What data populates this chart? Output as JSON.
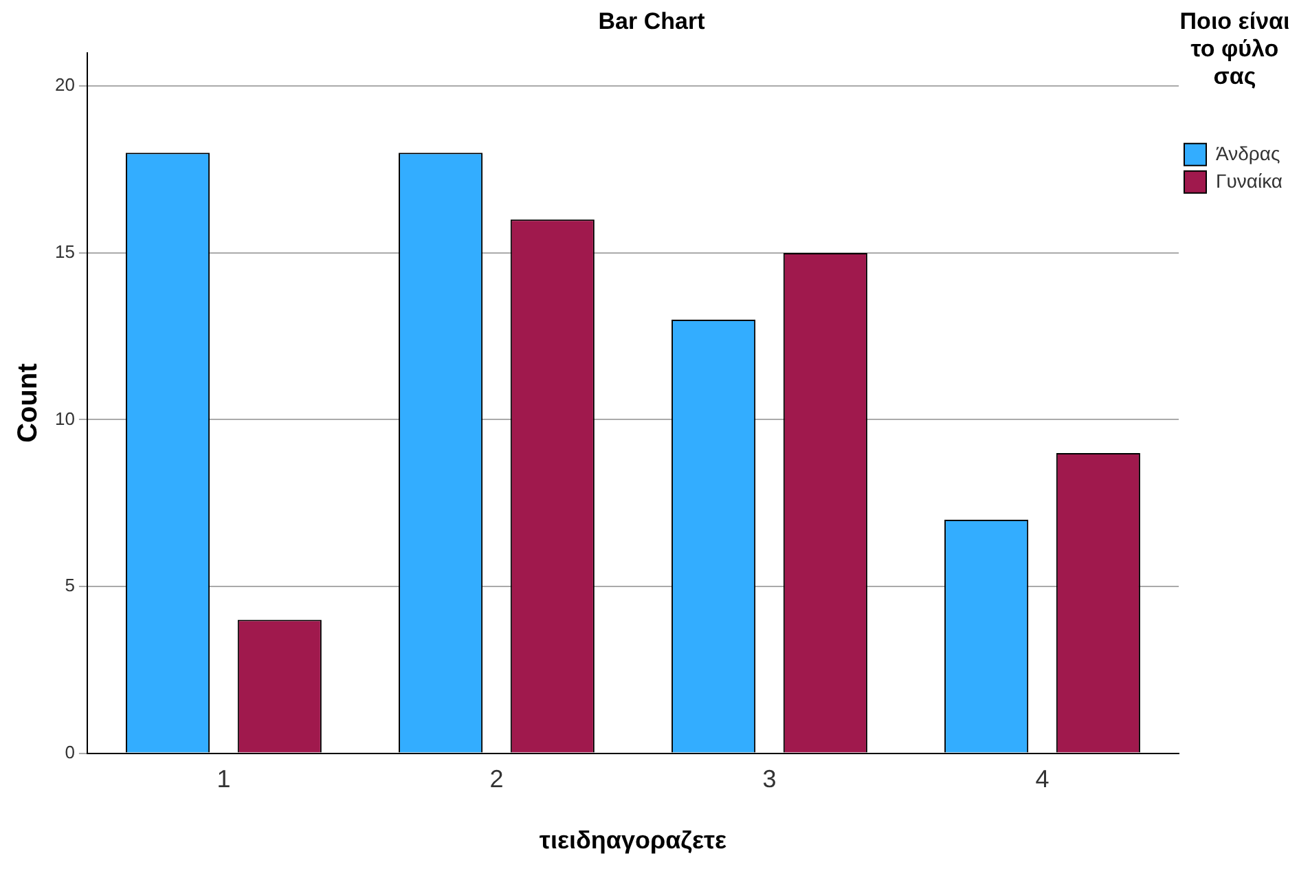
{
  "chart_data": {
    "type": "bar",
    "title": "Bar Chart",
    "xlabel": "τιειδηαγοραζετε",
    "ylabel": "Count",
    "legend_title": "Ποιο είναι το φύλο σας",
    "categories": [
      "1",
      "2",
      "3",
      "4"
    ],
    "series": [
      {
        "name": "Άνδρας",
        "color": "#33adff",
        "values": [
          18,
          18,
          13,
          7
        ]
      },
      {
        "name": "Γυναίκα",
        "color": "#a0194d",
        "values": [
          4,
          16,
          15,
          9
        ]
      }
    ],
    "ylim": [
      0,
      21
    ],
    "yticks": [
      0,
      5,
      10,
      15,
      20
    ],
    "grid": "y",
    "legend": "top right"
  }
}
